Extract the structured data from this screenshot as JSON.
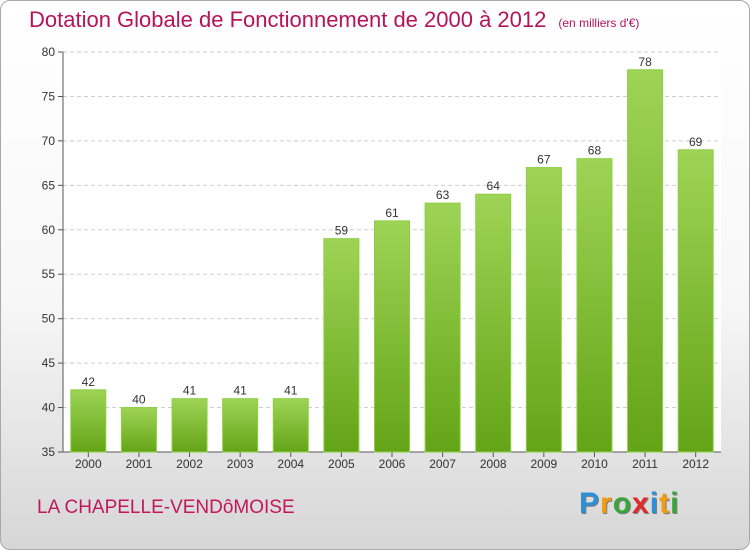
{
  "chart_data": {
    "type": "bar",
    "title": "Dotation Globale de Fonctionnement de 2000 à 2012",
    "unit_label": "(en milliers d'€)",
    "xlabel": "",
    "ylabel": "",
    "categories": [
      "2000",
      "2001",
      "2002",
      "2003",
      "2004",
      "2005",
      "2006",
      "2007",
      "2008",
      "2009",
      "2010",
      "2011",
      "2012"
    ],
    "values": [
      42,
      40,
      41,
      41,
      41,
      59,
      61,
      63,
      64,
      67,
      68,
      78,
      69
    ],
    "ylim": [
      35,
      80
    ],
    "yticks": [
      35,
      40,
      45,
      50,
      55,
      60,
      65,
      70,
      75,
      80
    ],
    "grid": true,
    "bar_color": "#7cc232"
  },
  "commune": "LA CHAPELLE-VENDôMOISE",
  "logo": {
    "letters": [
      "P",
      "r",
      "o",
      "x",
      "i",
      "t",
      "i"
    ],
    "colors": [
      "#2e8fd6",
      "#f39c12",
      "#3aa63a",
      "#e02a2a",
      "#2e8fd6",
      "#f39c12",
      "#3aa63a"
    ]
  },
  "colors": {
    "title": "#b5135a",
    "commune": "#c2185b"
  }
}
